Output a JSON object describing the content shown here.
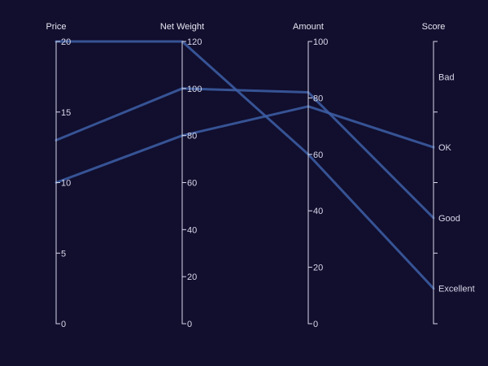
{
  "chart_data": {
    "type": "parallel-coordinates",
    "line_color": "#3d5fa6",
    "axes": [
      {
        "name": "Price",
        "kind": "numeric",
        "range": [
          0,
          20
        ],
        "ticks": [
          0,
          5,
          10,
          15,
          20
        ]
      },
      {
        "name": "Net Weight",
        "kind": "numeric",
        "range": [
          0,
          120
        ],
        "ticks": [
          0,
          20,
          40,
          60,
          80,
          100,
          120
        ]
      },
      {
        "name": "Amount",
        "kind": "numeric",
        "range": [
          0,
          100
        ],
        "ticks": [
          0,
          20,
          40,
          60,
          80,
          100
        ]
      },
      {
        "name": "Score",
        "kind": "categorical",
        "categories": [
          "Excellent",
          "Good",
          "OK",
          "Bad"
        ]
      }
    ],
    "records": [
      {
        "values": [
          20,
          120,
          60,
          "Excellent"
        ]
      },
      {
        "values": [
          13,
          100,
          82,
          "Good"
        ]
      },
      {
        "values": [
          10,
          80,
          77,
          "OK"
        ]
      }
    ]
  }
}
